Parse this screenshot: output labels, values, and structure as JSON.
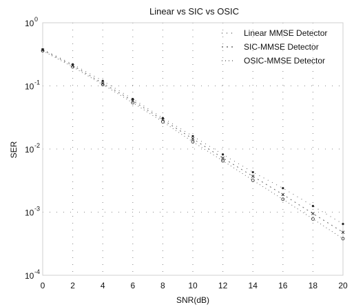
{
  "chart_data": {
    "type": "line",
    "title": "Linear vs SIC vs OSIC",
    "xlabel": "SNR(dB)",
    "ylabel": "SER",
    "xlim": [
      0,
      20
    ],
    "ylim": [
      0.0001,
      1
    ],
    "yscale": "log",
    "grid": true,
    "legend_position": "top-right",
    "x_ticks": [
      "0",
      "2",
      "4",
      "6",
      "8",
      "10",
      "12",
      "14",
      "16",
      "18",
      "20"
    ],
    "y_ticks": [
      {
        "base": "10",
        "exp": "0"
      },
      {
        "base": "10",
        "exp": "-1"
      },
      {
        "base": "10",
        "exp": "-2"
      },
      {
        "base": "10",
        "exp": "-3"
      },
      {
        "base": "10",
        "exp": "-4"
      }
    ],
    "x": [
      0,
      2,
      4,
      6,
      8,
      10,
      12,
      14,
      16,
      18,
      20
    ],
    "series": [
      {
        "name": "Linear MMSE Detector",
        "color": "#222222",
        "values": [
          0.38,
          0.22,
          0.12,
          0.062,
          0.031,
          0.016,
          0.0082,
          0.0043,
          0.0024,
          0.00125,
          0.00065
        ]
      },
      {
        "name": "SIC-MMSE Detector",
        "color": "#222222",
        "values": [
          0.37,
          0.21,
          0.11,
          0.058,
          0.029,
          0.0145,
          0.0072,
          0.0037,
          0.0019,
          0.00095,
          0.00048
        ]
      },
      {
        "name": "OSIC-MMSE Detector",
        "color": "#222222",
        "values": [
          0.36,
          0.2,
          0.105,
          0.054,
          0.027,
          0.013,
          0.0065,
          0.0032,
          0.0016,
          0.00078,
          0.00038
        ]
      }
    ]
  }
}
